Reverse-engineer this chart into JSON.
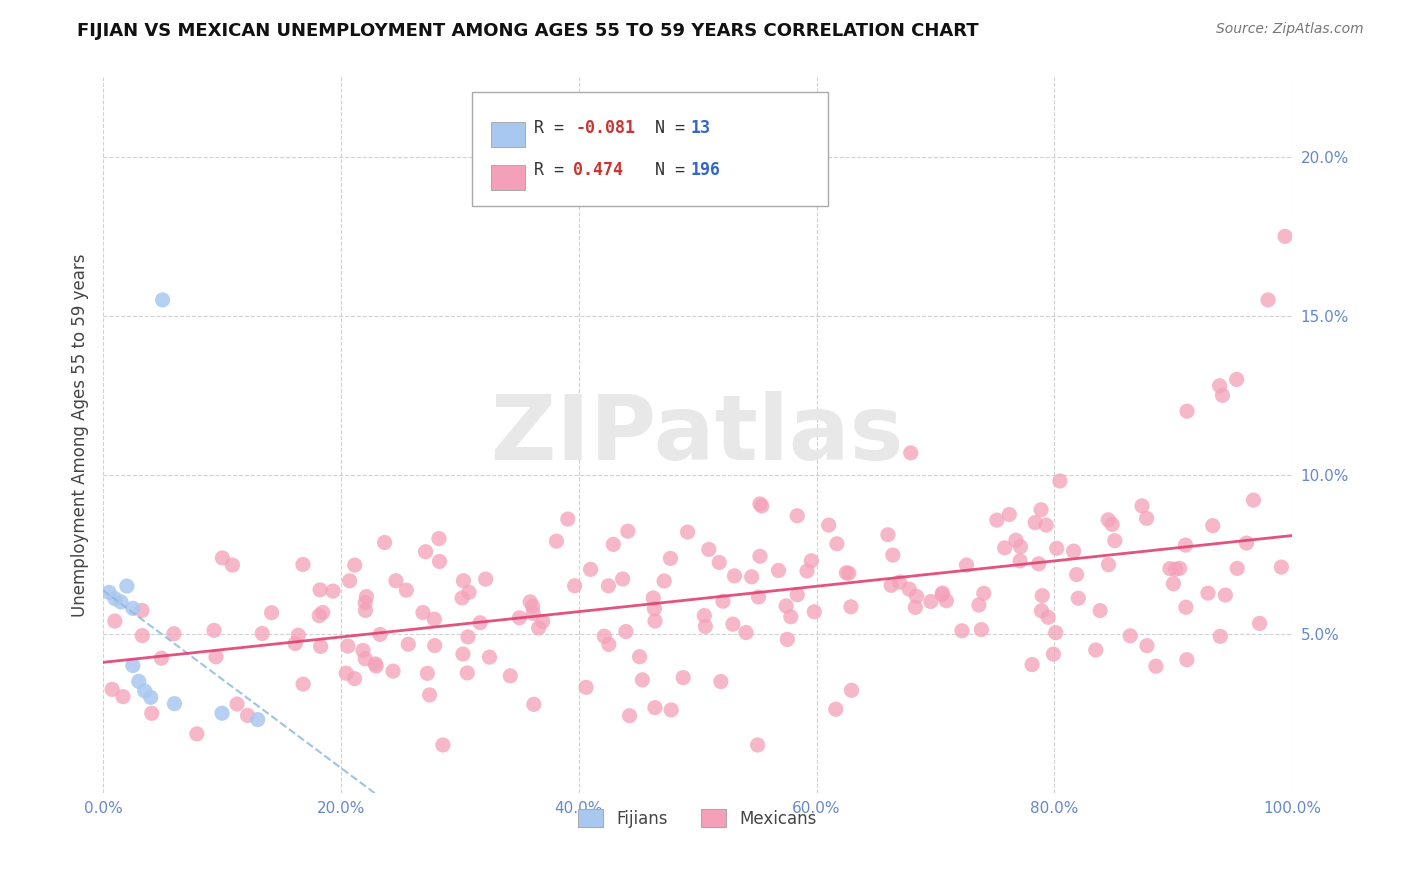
{
  "title": "FIJIAN VS MEXICAN UNEMPLOYMENT AMONG AGES 55 TO 59 YEARS CORRELATION CHART",
  "source": "Source: ZipAtlas.com",
  "ylabel": "Unemployment Among Ages 55 to 59 years",
  "xlim": [
    0.0,
    1.0
  ],
  "ylim": [
    0.0,
    0.225
  ],
  "fijian_R": -0.081,
  "fijian_N": 13,
  "mexican_R": 0.474,
  "mexican_N": 196,
  "fijian_color": "#a8c8f0",
  "mexican_color": "#f4a0b8",
  "fijian_line_color": "#90b8e0",
  "mexican_line_color": "#e04070",
  "watermark_text": "ZIPatlas",
  "xtick_vals": [
    0.0,
    0.2,
    0.4,
    0.6,
    0.8,
    1.0
  ],
  "xtick_labels": [
    "0.0%",
    "20.0%",
    "40.0%",
    "60.0%",
    "80.0%",
    "100.0%"
  ],
  "ytick_vals": [
    0.05,
    0.1,
    0.15,
    0.2
  ],
  "ytick_labels": [
    "5.0%",
    "10.0%",
    "15.0%",
    "20.0%"
  ],
  "tick_color": "#6688cc",
  "fijian_x": [
    0.005,
    0.01,
    0.015,
    0.02,
    0.025,
    0.025,
    0.03,
    0.035,
    0.04,
    0.05,
    0.06,
    0.1,
    0.13
  ],
  "fijian_y": [
    0.063,
    0.061,
    0.06,
    0.065,
    0.058,
    0.04,
    0.035,
    0.032,
    0.03,
    0.155,
    0.028,
    0.025,
    0.023
  ],
  "legend_fij_label_R": "-0.081",
  "legend_fij_label_N": "13",
  "legend_mex_label_R": "0.474",
  "legend_mex_label_N": "196",
  "R_color_fij": "#cc3333",
  "N_color_fij": "#3366cc",
  "R_color_mex": "#cc3333",
  "N_color_mex": "#3366cc"
}
